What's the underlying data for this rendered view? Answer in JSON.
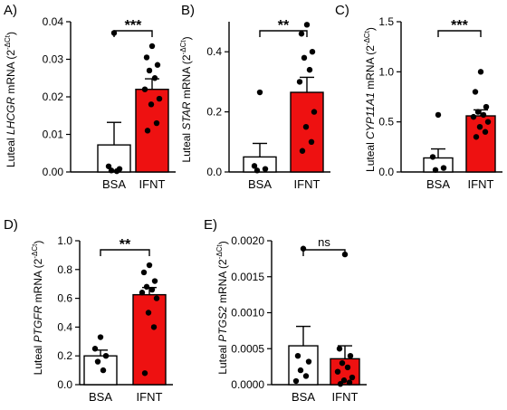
{
  "chart_data": [
    {
      "type": "bar",
      "panel": "A)",
      "gene": "LHCGR",
      "ylabel_prefix": "Luteal ",
      "ylabel_suffix": " mRNA (2",
      "ylabel_sup": "-ΔCt",
      "ylabel_close": ")",
      "categories": [
        "BSA",
        "IFNT"
      ],
      "values": [
        0.0072,
        0.022
      ],
      "errors": [
        0.006,
        0.0028
      ],
      "points": [
        [
          0.037,
          0.0015,
          0.0008,
          0.0004,
          0.0002
        ],
        [
          0.0335,
          0.0305,
          0.0285,
          0.027,
          0.025,
          0.022,
          0.0195,
          0.018,
          0.013,
          0.011
        ]
      ],
      "ylim": [
        0,
        0.04
      ],
      "yticks": [
        "0.00",
        "0.01",
        "0.02",
        "0.03",
        "0.04"
      ],
      "yticks_values": [
        0,
        0.01,
        0.02,
        0.03,
        0.04
      ],
      "significance": "***",
      "colors": [
        "#ffffff",
        "#ee1111"
      ]
    },
    {
      "type": "bar",
      "panel": "B)",
      "gene": "STAR",
      "ylabel_prefix": "Luteal ",
      "ylabel_suffix": " mRNA (2",
      "ylabel_sup": "-ΔCt",
      "ylabel_close": ")",
      "categories": [
        "BSA",
        "IFNT"
      ],
      "values": [
        0.05,
        0.265
      ],
      "errors": [
        0.045,
        0.05
      ],
      "points": [
        [
          0.265,
          0.02,
          0.01,
          0.005
        ],
        [
          0.49,
          0.46,
          0.4,
          0.38,
          0.34,
          0.3,
          0.2,
          0.15,
          0.1,
          0.07
        ]
      ],
      "ylim": [
        0,
        0.5
      ],
      "yticks": [
        "0.0",
        "0.2",
        "0.4"
      ],
      "yticks_values": [
        0,
        0.2,
        0.4
      ],
      "significance": "**",
      "colors": [
        "#ffffff",
        "#ee1111"
      ]
    },
    {
      "type": "bar",
      "panel": "C)",
      "gene": "CYP11A1",
      "ylabel_prefix": "Luteal ",
      "ylabel_suffix": " mRNA (2",
      "ylabel_sup": "-ΔCt",
      "ylabel_close": ")",
      "categories": [
        "BSA",
        "IFNT"
      ],
      "values": [
        0.14,
        0.56
      ],
      "errors": [
        0.09,
        0.06
      ],
      "points": [
        [
          0.57,
          0.15,
          0.04,
          0.02
        ],
        [
          1.0,
          0.8,
          0.65,
          0.6,
          0.57,
          0.55,
          0.5,
          0.45,
          0.4,
          0.35
        ]
      ],
      "ylim": [
        0,
        1.5
      ],
      "yticks": [
        "0.0",
        "0.5",
        "1.0",
        "1.5"
      ],
      "yticks_values": [
        0,
        0.5,
        1.0,
        1.5
      ],
      "significance": "***",
      "colors": [
        "#ffffff",
        "#ee1111"
      ]
    },
    {
      "type": "bar",
      "panel": "D)",
      "gene": "PTGFR",
      "ylabel_prefix": "Luteal ",
      "ylabel_suffix": " mRNA (2",
      "ylabel_sup": "-ΔCt",
      "ylabel_close": ")",
      "categories": [
        "BSA",
        "IFNT"
      ],
      "values": [
        0.2,
        0.625
      ],
      "errors": [
        0.04,
        0.05
      ],
      "points": [
        [
          0.33,
          0.25,
          0.2,
          0.16,
          0.1
        ],
        [
          0.83,
          0.78,
          0.72,
          0.68,
          0.66,
          0.64,
          0.6,
          0.5,
          0.4,
          0.08
        ]
      ],
      "ylim": [
        0,
        1.0
      ],
      "yticks": [
        "0.0",
        "0.2",
        "0.4",
        "0.6",
        "0.8",
        "1.0"
      ],
      "yticks_values": [
        0,
        0.2,
        0.4,
        0.6,
        0.8,
        1.0
      ],
      "significance": "**",
      "colors": [
        "#ffffff",
        "#ee1111"
      ]
    },
    {
      "type": "bar",
      "panel": "E)",
      "gene": "PTGS2",
      "ylabel_prefix": "Luteal ",
      "ylabel_suffix": " mRNA (2",
      "ylabel_sup": "-ΔCt",
      "ylabel_close": ")",
      "categories": [
        "BSA",
        "IFNT"
      ],
      "values": [
        0.00054,
        0.00036
      ],
      "errors": [
        0.00027,
        0.00018
      ],
      "points": [
        [
          0.00189,
          0.0004,
          0.00032,
          0.0002,
          0.00012,
          5e-05
        ],
        [
          0.00181,
          0.0005,
          0.0004,
          0.0003,
          0.00024,
          0.00018,
          0.0001,
          6e-05,
          3e-05,
          1e-05
        ]
      ],
      "ylim": [
        0,
        0.002
      ],
      "yticks": [
        "0.0000",
        "0.0005",
        "0.0010",
        "0.0015",
        "0.0020"
      ],
      "yticks_values": [
        0,
        0.0005,
        0.001,
        0.0015,
        0.002
      ],
      "significance": "ns",
      "colors": [
        "#ffffff",
        "#ee1111"
      ]
    }
  ]
}
